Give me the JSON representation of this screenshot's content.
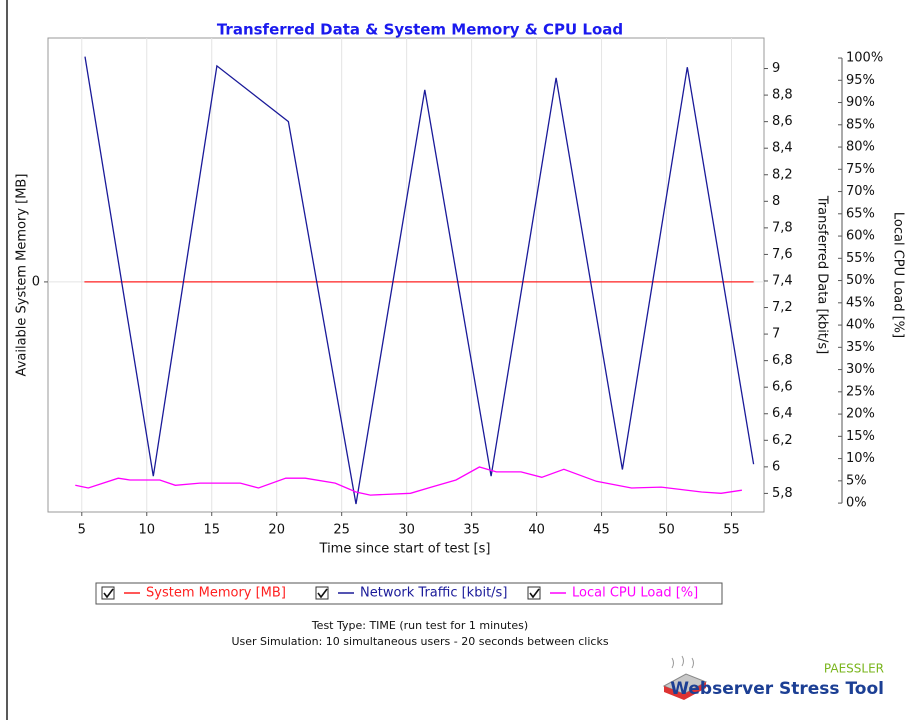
{
  "chart_data": {
    "type": "line",
    "title": "Transferred Data & System Memory & CPU Load",
    "x_label": "Time since start of test [s]",
    "y_label": "Available System Memory [MB]",
    "y2_label": "Transferred Data [kbit/s]",
    "y3_label": "Local CPU Load [%]",
    "xlim": [
      2.4,
      57.5
    ],
    "xticks": [
      5,
      10,
      15,
      20,
      25,
      30,
      35,
      40,
      45,
      50,
      55
    ],
    "ylim": [
      -1,
      1.06
    ],
    "yticks": [
      0
    ],
    "y2lim": [
      5.66,
      9.23
    ],
    "y2ticks": [
      {
        "value": 5.8,
        "label": "5,8"
      },
      6,
      {
        "value": 6.2,
        "label": "6,2"
      },
      {
        "value": 6.4,
        "label": "6,4"
      },
      {
        "value": 6.6,
        "label": "6,6"
      },
      {
        "value": 6.8,
        "label": "6,8"
      },
      7,
      {
        "value": 7.2,
        "label": "7,2"
      },
      {
        "value": 7.4,
        "label": "7,4"
      },
      {
        "value": 7.6,
        "label": "7,6"
      },
      {
        "value": 7.8,
        "label": "7,8"
      },
      8,
      {
        "value": 8.2,
        "label": "8,2"
      },
      {
        "value": 8.4,
        "label": "8,4"
      },
      {
        "value": 8.6,
        "label": "8,6"
      },
      {
        "value": 8.8,
        "label": "8,8"
      },
      9
    ],
    "y3lim": [
      -2,
      104.5
    ],
    "y3ticks": [
      {
        "value": 0,
        "label": "0%"
      },
      {
        "value": 5,
        "label": "5%"
      },
      {
        "value": 10,
        "label": "10%"
      },
      {
        "value": 15,
        "label": "15%"
      },
      {
        "value": 20,
        "label": "20%"
      },
      {
        "value": 25,
        "label": "25%"
      },
      {
        "value": 30,
        "label": "30%"
      },
      {
        "value": 35,
        "label": "35%"
      },
      {
        "value": 40,
        "label": "40%"
      },
      {
        "value": 45,
        "label": "45%"
      },
      {
        "value": 50,
        "label": "50%"
      },
      {
        "value": 55,
        "label": "55%"
      },
      {
        "value": 60,
        "label": "60%"
      },
      {
        "value": 65,
        "label": "65%"
      },
      {
        "value": 70,
        "label": "70%"
      },
      {
        "value": 75,
        "label": "75%"
      },
      {
        "value": 80,
        "label": "80%"
      },
      {
        "value": 85,
        "label": "85%"
      },
      {
        "value": 90,
        "label": "90%"
      },
      {
        "value": 95,
        "label": "95%"
      },
      {
        "value": 100,
        "label": "100%"
      }
    ],
    "grid": true,
    "series": [
      {
        "name": "System Memory [MB]",
        "color": "#ff2020",
        "axis": "y",
        "x": [
          5.2,
          56.7
        ],
        "values": [
          0,
          0
        ]
      },
      {
        "name": "Network Traffic [kbit/s]",
        "color": "#1a1a99",
        "axis": "y2",
        "x": [
          5.25,
          10.5,
          15.4,
          20.9,
          26.1,
          31.4,
          36.5,
          41.5,
          46.6,
          51.6,
          56.7
        ],
        "values": [
          9.09,
          5.93,
          9.02,
          8.6,
          5.72,
          8.84,
          5.93,
          8.93,
          5.98,
          9.01,
          6.02
        ]
      },
      {
        "name": "Local CPU Load [%]",
        "color": "#ff00ff",
        "axis": "y3",
        "x": [
          4.5,
          5.5,
          7.8,
          8.7,
          11.0,
          12.2,
          14.1,
          17.2,
          18.6,
          20.7,
          22.2,
          24.5,
          26.1,
          27.2,
          30.3,
          31.9,
          33.8,
          35.6,
          36.9,
          38.8,
          40.4,
          42.1,
          44.6,
          47.3,
          49.6,
          52.7,
          54.2,
          55.8
        ],
        "values": [
          4,
          3.4,
          5.6,
          5.2,
          5.2,
          4,
          4.5,
          4.5,
          3.4,
          5.6,
          5.6,
          4.5,
          2.5,
          1.8,
          2.2,
          3.6,
          5.2,
          8.1,
          7,
          7,
          5.8,
          7.6,
          4.9,
          3.4,
          3.6,
          2.5,
          2.2,
          2.9
        ]
      }
    ],
    "footer": [
      "Test Type: TIME (run test for 1 minutes)",
      "User Simulation: 10 simultaneous users - 20 seconds between clicks"
    ],
    "brand": "PAESSLER",
    "product": "Webserver Stress Tool"
  }
}
